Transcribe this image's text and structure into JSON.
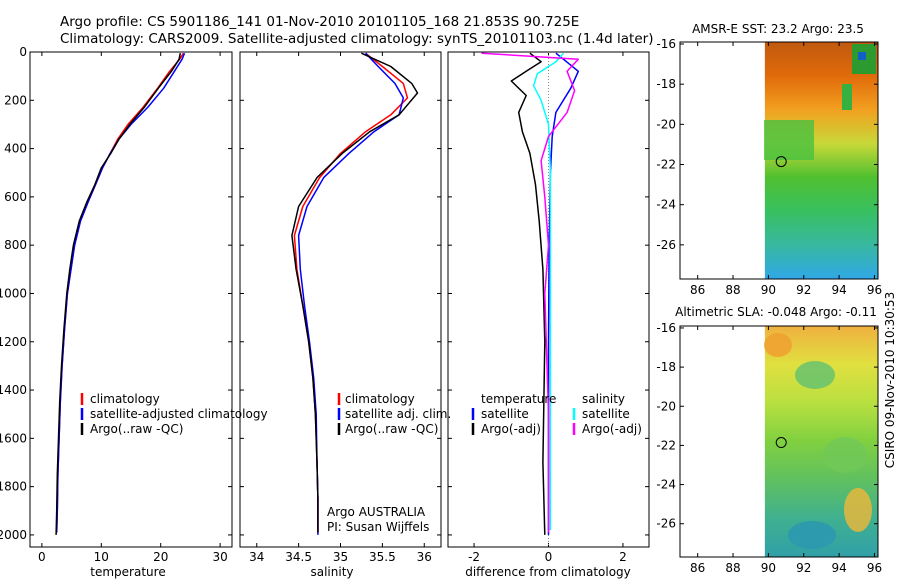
{
  "header": {
    "line1": "Argo profile: CS 5901186_141 01-Nov-2010 20101105_168 21.853S 90.725E",
    "line2": "Climatology: CARS2009. Satellite-adjusted climatology: synTS_20101103.nc (1.4d later)"
  },
  "side_label": "CSIRO 09-Nov-2010 10:30:53",
  "colors": {
    "climatology": "#ff0000",
    "satellite": "#0000ff",
    "argo": "#000000",
    "salinity_sat": "#00ffff",
    "salinity_argo": "#ff00ff"
  },
  "chart_data": [
    {
      "type": "line",
      "name": "temperature-profile",
      "xlabel": "temperature",
      "ylabel": "",
      "xlim": [
        -2,
        32
      ],
      "ylim": [
        2050,
        0
      ],
      "xticks": [
        "0",
        "10",
        "20",
        "30"
      ],
      "xtick_values": [
        0,
        10,
        20,
        30
      ],
      "yticks": [
        "0",
        "200",
        "400",
        "600",
        "800",
        "1000",
        "1200",
        "1400",
        "1600",
        "1800",
        "2000"
      ],
      "ytick_values": [
        0,
        200,
        400,
        600,
        800,
        1000,
        1200,
        1400,
        1600,
        1800,
        2000
      ],
      "legend": [
        "climatology",
        "satellite-adjusted climatology",
        "Argo(..raw -QC)"
      ],
      "series": [
        {
          "name": "climatology",
          "color": "#ff0000",
          "width": 1.5,
          "x": [
            23.8,
            23.2,
            21.5,
            19.5,
            17.0,
            14.5,
            12.8,
            11.5,
            10.2,
            9.0,
            7.8,
            6.5,
            5.5,
            4.9,
            4.3,
            3.8,
            3.4,
            3.1,
            2.9,
            2.7,
            2.6,
            2.5
          ],
          "y": [
            5,
            30,
            80,
            150,
            230,
            300,
            360,
            420,
            480,
            550,
            620,
            700,
            800,
            900,
            1000,
            1150,
            1300,
            1450,
            1600,
            1750,
            1900,
            1990
          ]
        },
        {
          "name": "satellite-adjusted climatology",
          "color": "#0000ff",
          "width": 1.5,
          "x": [
            24.0,
            23.6,
            22.3,
            20.5,
            17.8,
            15.0,
            13.0,
            11.5,
            10.2,
            9.0,
            7.8,
            6.5,
            5.5,
            4.9,
            4.3,
            3.8,
            3.4,
            3.1,
            2.9,
            2.7,
            2.6,
            2.5
          ],
          "y": [
            5,
            30,
            80,
            150,
            230,
            300,
            360,
            420,
            480,
            550,
            620,
            700,
            800,
            900,
            1000,
            1150,
            1300,
            1450,
            1600,
            1750,
            1900,
            1990
          ]
        },
        {
          "name": "Argo(..raw -QC)",
          "color": "#000000",
          "width": 1.5,
          "x": [
            23.3,
            23.1,
            21.8,
            19.6,
            17.2,
            14.8,
            13.0,
            11.6,
            10.0,
            8.9,
            7.6,
            6.3,
            5.3,
            4.7,
            4.2,
            3.7,
            3.3,
            3.0,
            2.8,
            2.6,
            2.5,
            2.4
          ],
          "y": [
            5,
            30,
            80,
            150,
            230,
            300,
            360,
            420,
            480,
            550,
            620,
            700,
            800,
            900,
            1000,
            1150,
            1300,
            1450,
            1600,
            1750,
            1900,
            2000
          ]
        }
      ]
    },
    {
      "type": "line",
      "name": "salinity-profile",
      "xlabel": "salinity",
      "ylabel": "",
      "xlim": [
        33.8,
        36.2
      ],
      "ylim": [
        2050,
        0
      ],
      "xticks": [
        "34",
        "34.5",
        "35",
        "35.5",
        "36"
      ],
      "xtick_values": [
        34,
        34.5,
        35,
        35.5,
        36
      ],
      "legend": [
        "climatology",
        "satellite adj. clim.",
        "Argo(..raw -QC)"
      ],
      "annotations": [
        "Argo AUSTRALIA",
        "PI: Susan Wijffels"
      ],
      "series": [
        {
          "name": "climatology",
          "color": "#ff0000",
          "width": 1.5,
          "x": [
            35.3,
            35.5,
            35.75,
            35.8,
            35.6,
            35.3,
            35.0,
            34.75,
            34.55,
            34.45,
            34.48,
            34.55,
            34.62,
            34.67,
            34.7,
            34.72,
            34.73,
            34.73
          ],
          "y": [
            5,
            60,
            130,
            190,
            260,
            330,
            420,
            520,
            640,
            760,
            900,
            1050,
            1200,
            1350,
            1500,
            1700,
            1850,
            1990
          ]
        },
        {
          "name": "satellite adj. clim.",
          "color": "#0000ff",
          "width": 1.5,
          "x": [
            35.3,
            35.45,
            35.65,
            35.75,
            35.7,
            35.4,
            35.1,
            34.8,
            34.6,
            34.5,
            34.52,
            34.57,
            34.63,
            34.68,
            34.71,
            34.72,
            34.73,
            34.73
          ],
          "y": [
            5,
            60,
            130,
            190,
            260,
            330,
            420,
            520,
            640,
            760,
            900,
            1050,
            1200,
            1350,
            1500,
            1700,
            1850,
            2000
          ]
        },
        {
          "name": "Argo(..raw -QC)",
          "color": "#000000",
          "width": 1.5,
          "x": [
            35.25,
            35.6,
            35.85,
            35.92,
            35.7,
            35.35,
            35.02,
            34.72,
            34.5,
            34.42,
            34.47,
            34.55,
            34.62,
            34.67,
            34.7,
            34.72,
            34.73,
            34.73
          ],
          "y": [
            5,
            60,
            130,
            170,
            260,
            330,
            420,
            520,
            640,
            760,
            900,
            1050,
            1200,
            1350,
            1500,
            1700,
            1850,
            1990
          ]
        }
      ]
    },
    {
      "type": "line",
      "name": "difference-profile",
      "xlabel": "difference from climatology",
      "ylabel": "",
      "xlim": [
        -2.7,
        2.7
      ],
      "ylim": [
        2050,
        0
      ],
      "xticks": [
        "-2",
        "0",
        "2"
      ],
      "xtick_values": [
        -2,
        0,
        2
      ],
      "legend_left_title": "temperature",
      "legend_right_title": "salinity",
      "legend": [
        "satellite",
        "Argo(-adj)",
        "satellite",
        "Argo(-adj)"
      ],
      "series": [
        {
          "name": "temperature satellite",
          "color": "#0000ff",
          "width": 1.5,
          "x": [
            0.2,
            0.4,
            0.8,
            0.6,
            0.2,
            0.1,
            0.05,
            0.02,
            0.0,
            0.0,
            0.0
          ],
          "y": [
            5,
            30,
            80,
            150,
            250,
            350,
            500,
            800,
            1200,
            1600,
            2000
          ]
        },
        {
          "name": "temperature Argo(-adj)",
          "color": "#000000",
          "width": 1.5,
          "x": [
            -0.5,
            -0.2,
            -0.6,
            -1.0,
            -0.6,
            -0.8,
            -0.7,
            -0.5,
            -0.35,
            -0.25,
            -0.15,
            -0.1,
            -0.15,
            -0.1
          ],
          "y": [
            5,
            40,
            80,
            120,
            180,
            250,
            330,
            420,
            550,
            700,
            900,
            1200,
            1700,
            2000
          ]
        },
        {
          "name": "salinity satellite",
          "color": "#00ffff",
          "width": 1.5,
          "x": [
            0.4,
            0.2,
            -0.3,
            -0.4,
            -0.2,
            0.0,
            0.05,
            0.05,
            0.05,
            0.05,
            0.05
          ],
          "y": [
            5,
            40,
            90,
            140,
            200,
            300,
            500,
            800,
            1200,
            1600,
            1980
          ]
        },
        {
          "name": "salinity Argo(-adj)",
          "color": "#ff00ff",
          "width": 1.5,
          "x": [
            -1.8,
            0.8,
            0.5,
            0.7,
            0.5,
            0.0,
            -0.2,
            -0.1,
            0.0,
            -0.1,
            0.0,
            0.0
          ],
          "y": [
            5,
            30,
            80,
            160,
            250,
            350,
            450,
            600,
            800,
            1000,
            1500,
            1990
          ]
        }
      ]
    },
    {
      "type": "heatmap",
      "name": "amsr-e-sst-map",
      "title": "AMSR-E SST: 23.2 Argo: 23.5",
      "xlim": [
        85,
        96.2
      ],
      "ylim": [
        -27.7,
        -15.9
      ],
      "data_xrange": [
        89.8,
        96.2
      ],
      "xticks": [
        "86",
        "88",
        "90",
        "92",
        "94",
        "96"
      ],
      "xtick_values": [
        86,
        88,
        90,
        92,
        94,
        96
      ],
      "yticks": [
        "-16",
        "-18",
        "-20",
        "-22",
        "-24",
        "-26"
      ],
      "ytick_values": [
        -16,
        -18,
        -20,
        -22,
        -24,
        -26
      ],
      "marker": {
        "lon": 90.725,
        "lat": -21.853
      },
      "gradient": [
        "#c05a10",
        "#e06a0a",
        "#f2a020",
        "#c8d838",
        "#50c030",
        "#38c060",
        "#38b8a0",
        "#30a8e8"
      ]
    },
    {
      "type": "heatmap",
      "name": "altimetric-sla-map",
      "title": "Altimetric SLA: -0.048 Argo: -0.11",
      "xlim": [
        85,
        96.2
      ],
      "ylim": [
        -27.7,
        -15.9
      ],
      "data_xrange": [
        89.8,
        96.2
      ],
      "xticks": [
        "86",
        "88",
        "90",
        "92",
        "94",
        "96"
      ],
      "xtick_values": [
        86,
        88,
        90,
        92,
        94,
        96
      ],
      "yticks": [
        "-16",
        "-18",
        "-20",
        "-22",
        "-24",
        "-26"
      ],
      "ytick_values": [
        -16,
        -18,
        -20,
        -22,
        -24,
        -26
      ],
      "marker": {
        "lon": 90.725,
        "lat": -21.853
      },
      "gradient": [
        "#f0b040",
        "#e0e040",
        "#b8e040",
        "#80d040",
        "#60c060",
        "#40b090",
        "#30a0a8"
      ]
    }
  ]
}
